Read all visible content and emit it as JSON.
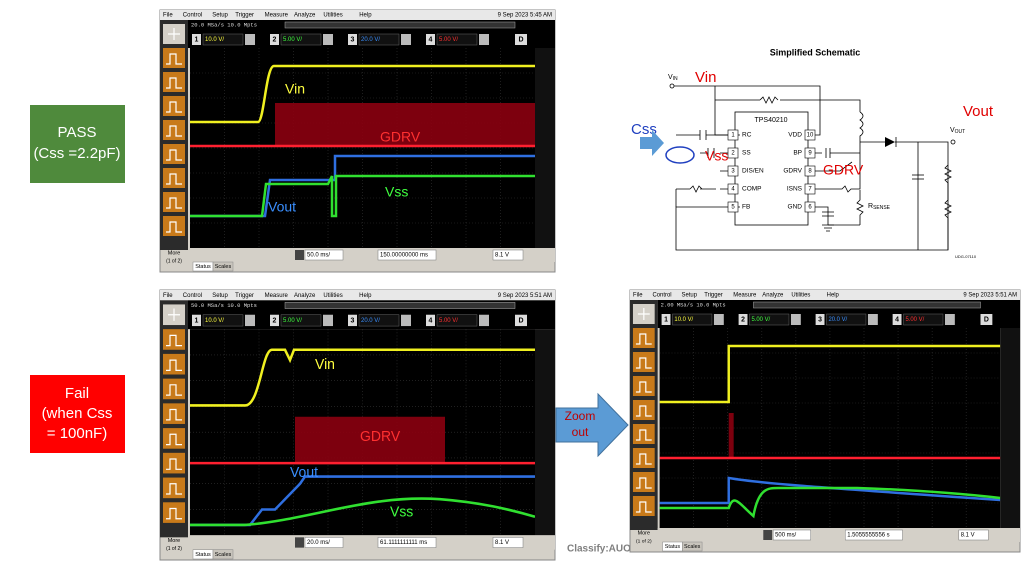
{
  "pass_label": [
    "PASS",
    "(Css =2.2pF)"
  ],
  "fail_label": [
    "Fail",
    "(when Css",
    "= 100nF)"
  ],
  "zoom_label": [
    "Zoom",
    "out"
  ],
  "classification": "Classify:AUO",
  "scopes": [
    {
      "menu": [
        "File",
        "Control",
        "Setup",
        "Trigger",
        "Measure",
        "Analyze",
        "Utilities",
        "Help"
      ],
      "date": "9 Sep 2023  5:45 AM",
      "acquisition": "20.0 MSa/s  10.0 Mpts",
      "channels": [
        {
          "number": "1",
          "scale": "10.0 V/"
        },
        {
          "number": "2",
          "scale": "5.00 V/"
        },
        {
          "number": "3",
          "scale": "20.0 V/"
        },
        {
          "number": "4",
          "scale": "5.00 V/"
        }
      ],
      "digital": "D",
      "timebase": "50.0 ms/",
      "delay": "150.00000000 ms",
      "trigger_level": "8.1 V",
      "tabs": [
        "Status",
        "Scales"
      ],
      "more": [
        "More",
        "(1 of 2)"
      ],
      "traces": [
        "Vin",
        "GDRV",
        "Vss",
        "Vout"
      ]
    },
    {
      "menu": [
        "File",
        "Control",
        "Setup",
        "Trigger",
        "Measure",
        "Analyze",
        "Utilities",
        "Help"
      ],
      "date": "9 Sep 2023  5:51 AM",
      "acquisition": "50.0 MSa/s  10.0 Mpts",
      "channels": [
        {
          "number": "1",
          "scale": "10.0 V/"
        },
        {
          "number": "2",
          "scale": "5.00 V/"
        },
        {
          "number": "3",
          "scale": "20.0 V/"
        },
        {
          "number": "4",
          "scale": "5.00 V/"
        }
      ],
      "digital": "D",
      "timebase": "20.0 ms/",
      "delay": "61.1111111111 ms",
      "trigger_level": "8.1 V",
      "tabs": [
        "Status",
        "Scales"
      ],
      "more": [
        "More",
        "(1 of 2)"
      ],
      "traces": [
        "Vin",
        "GDRV",
        "Vout",
        "Vss"
      ]
    },
    {
      "menu": [
        "File",
        "Control",
        "Setup",
        "Trigger",
        "Measure",
        "Analyze",
        "Utilities",
        "Help"
      ],
      "date": "9 Sep 2023  5:51 AM",
      "acquisition": "2.00 MSa/s  10.0 Mpts",
      "channels": [
        {
          "number": "1",
          "scale": "10.0 V/"
        },
        {
          "number": "2",
          "scale": "5.00 V/"
        },
        {
          "number": "3",
          "scale": "20.0 V/"
        },
        {
          "number": "4",
          "scale": "5.00 V/"
        }
      ],
      "digital": "D",
      "timebase": "500 ms/",
      "delay": "1.5055555556 s",
      "trigger_level": "8.1 V",
      "tabs": [
        "Status",
        "Scales"
      ],
      "more": [
        "More",
        "(1 of 2)"
      ],
      "traces": []
    }
  ],
  "schematic": {
    "title": "Simplified Schematic",
    "vin_symbol": [
      "V",
      "IN"
    ],
    "vout_symbol": [
      "V",
      "OUT"
    ],
    "rsense": [
      "R",
      "SENSE"
    ],
    "ic_name": "TPS40210",
    "left_pins": [
      {
        "number": "1",
        "name": "RC"
      },
      {
        "number": "2",
        "name": "SS"
      },
      {
        "number": "3",
        "name": "DIS/EN"
      },
      {
        "number": "4",
        "name": "COMP"
      },
      {
        "number": "5",
        "name": "FB"
      }
    ],
    "right_pins": [
      {
        "number": "10",
        "name": "VDD"
      },
      {
        "number": "9",
        "name": "BP"
      },
      {
        "number": "8",
        "name": "GDRV"
      },
      {
        "number": "7",
        "name": "ISNS"
      },
      {
        "number": "6",
        "name": "GND"
      }
    ],
    "drawing_id": "UDG-07110",
    "annotations": {
      "vin": "Vin",
      "vout": "Vout",
      "css": "Css",
      "vss": "Vss",
      "gdrv": "GDRV"
    }
  }
}
